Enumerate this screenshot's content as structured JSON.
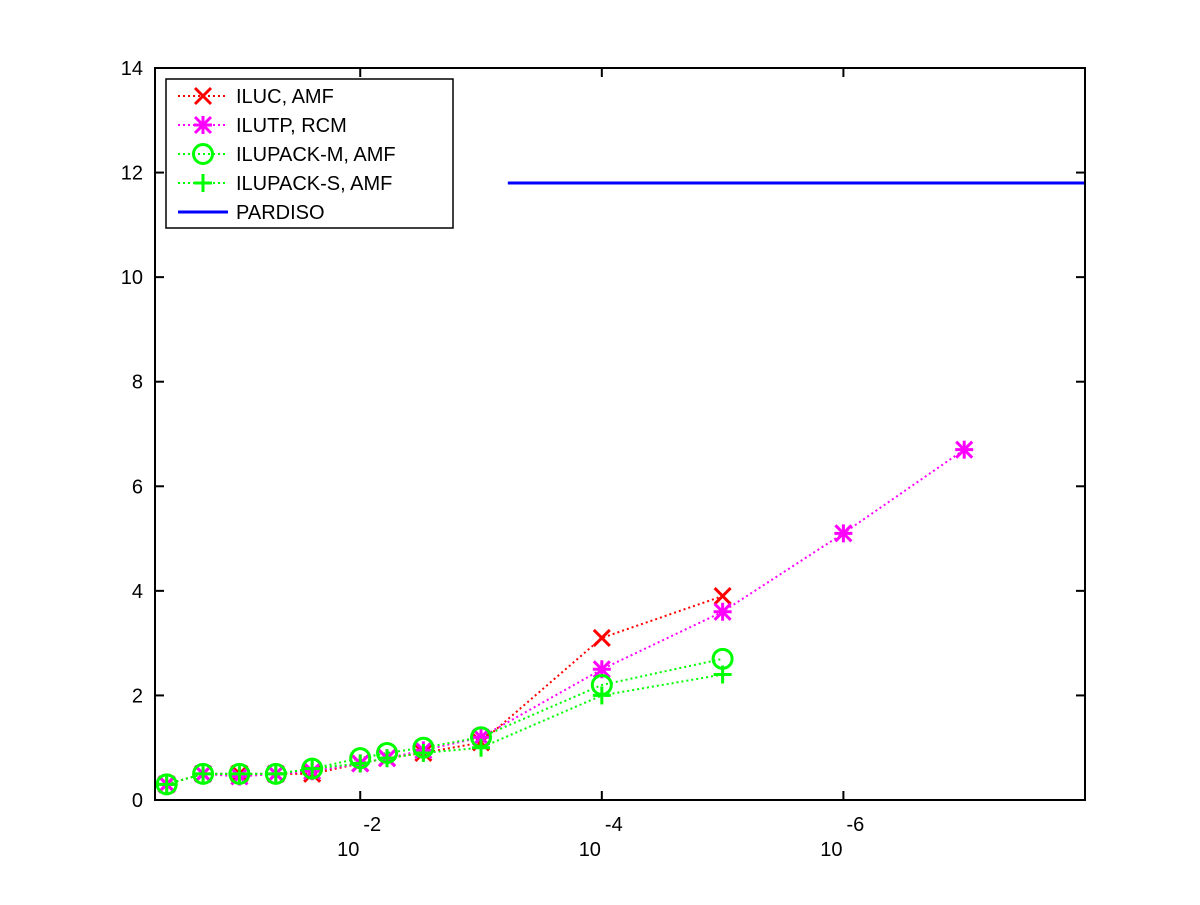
{
  "chart_data": {
    "type": "line",
    "x_scale": "log-reversed",
    "xlim": [
      0.5,
      1e-08
    ],
    "ylim": [
      0,
      14
    ],
    "y_ticks": [
      0,
      2,
      4,
      6,
      8,
      10,
      12,
      14
    ],
    "x_ticks": [
      {
        "value": 0.01,
        "base": "10",
        "exponent": "-2"
      },
      {
        "value": 0.0001,
        "base": "10",
        "exponent": "-4"
      },
      {
        "value": 1e-06,
        "base": "10",
        "exponent": "-6"
      }
    ],
    "grid": false,
    "legend_position": "top-left",
    "series": [
      {
        "name": "ILUC, AMF",
        "color": "#ff0000",
        "marker": "x",
        "line": "dotted",
        "points": [
          [
            0.4,
            0.3
          ],
          [
            0.2,
            0.5
          ],
          [
            0.1,
            0.5
          ],
          [
            0.05,
            0.5
          ],
          [
            0.025,
            0.5
          ],
          [
            0.01,
            0.7
          ],
          [
            0.006,
            0.8
          ],
          [
            0.003,
            0.9
          ],
          [
            0.001,
            1.1
          ],
          [
            0.0001,
            3.1
          ],
          [
            1e-05,
            3.9
          ]
        ]
      },
      {
        "name": "ILUTP, RCM",
        "color": "#ff00ff",
        "marker": "asterisk",
        "line": "dotted",
        "points": [
          [
            0.4,
            0.3
          ],
          [
            0.2,
            0.5
          ],
          [
            0.1,
            0.45
          ],
          [
            0.05,
            0.5
          ],
          [
            0.025,
            0.55
          ],
          [
            0.01,
            0.7
          ],
          [
            0.006,
            0.8
          ],
          [
            0.003,
            0.95
          ],
          [
            0.001,
            1.2
          ],
          [
            0.0001,
            2.5
          ],
          [
            1e-05,
            3.6
          ],
          [
            1e-06,
            5.1
          ],
          [
            1e-07,
            6.7
          ]
        ]
      },
      {
        "name": "ILUPACK-M, AMF",
        "color": "#00ff00",
        "marker": "circle",
        "line": "dotted",
        "points": [
          [
            0.4,
            0.3
          ],
          [
            0.2,
            0.5
          ],
          [
            0.1,
            0.5
          ],
          [
            0.05,
            0.5
          ],
          [
            0.025,
            0.6
          ],
          [
            0.01,
            0.8
          ],
          [
            0.006,
            0.9
          ],
          [
            0.003,
            1.0
          ],
          [
            0.001,
            1.2
          ],
          [
            0.0001,
            2.2
          ],
          [
            1e-05,
            2.7
          ]
        ]
      },
      {
        "name": "ILUPACK-S, AMF",
        "color": "#00ff00",
        "marker": "plus",
        "line": "dotted",
        "points": [
          [
            0.4,
            0.3
          ],
          [
            0.2,
            0.5
          ],
          [
            0.1,
            0.5
          ],
          [
            0.05,
            0.5
          ],
          [
            0.025,
            0.6
          ],
          [
            0.01,
            0.7
          ],
          [
            0.006,
            0.8
          ],
          [
            0.003,
            0.9
          ],
          [
            0.001,
            1.0
          ],
          [
            0.0001,
            2.0
          ],
          [
            1e-05,
            2.4
          ]
        ]
      },
      {
        "name": "PARDISO",
        "color": "#0000ff",
        "marker": "none",
        "line": "solid",
        "points": [
          [
            0.0006,
            11.8
          ],
          [
            1e-08,
            11.8
          ]
        ]
      }
    ]
  }
}
